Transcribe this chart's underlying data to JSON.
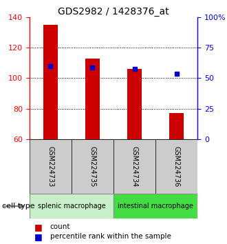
{
  "title": "GDS2982 / 1428376_at",
  "samples": [
    "GSM224733",
    "GSM224735",
    "GSM224734",
    "GSM224736"
  ],
  "count_values": [
    135,
    113,
    106,
    77
  ],
  "percentile_values": [
    108,
    107,
    106,
    103
  ],
  "ylim_left": [
    60,
    140
  ],
  "ylim_right": [
    0,
    100
  ],
  "yticks_left": [
    60,
    80,
    100,
    120,
    140
  ],
  "yticks_right": [
    0,
    25,
    50,
    75,
    100
  ],
  "ytick_labels_right": [
    "0",
    "25",
    "50",
    "75",
    "100%"
  ],
  "bar_color": "#cc0000",
  "percentile_color": "#0000cc",
  "bar_width": 0.35,
  "groups": [
    {
      "label": "splenic macrophage",
      "indices": [
        0,
        1
      ],
      "color": "#c8f0c8"
    },
    {
      "label": "intestinal macrophage",
      "indices": [
        2,
        3
      ],
      "color": "#44dd44"
    }
  ],
  "sample_box_color": "#cccccc",
  "legend_count_label": "count",
  "legend_percentile_label": "percentile rank within the sample",
  "cell_type_label": "cell type",
  "title_fontsize": 10,
  "tick_fontsize": 8,
  "sample_fontsize": 7,
  "group_fontsize": 7,
  "legend_fontsize": 7.5
}
